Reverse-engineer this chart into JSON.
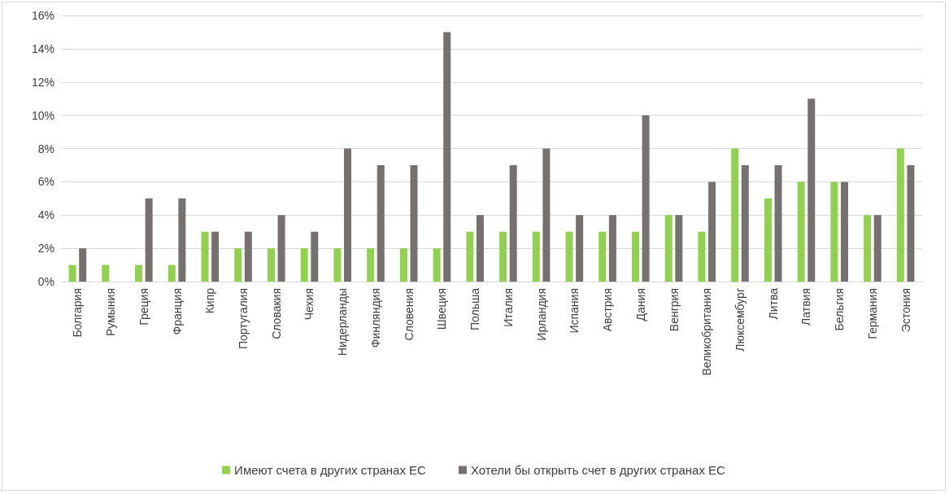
{
  "chart_data": {
    "type": "bar",
    "categories": [
      "Болгария",
      "Румыния",
      "Греция",
      "Франция",
      "Кипр",
      "Португалия",
      "Словакия",
      "Чехия",
      "Нидерланды",
      "Финляндия",
      "Словения",
      "Швеция",
      "Польша",
      "Италия",
      "Ирландия",
      "Испания",
      "Австрия",
      "Дания",
      "Венгрия",
      "Великобритания",
      "Люксембург",
      "Литва",
      "Латвия",
      "Бельгия",
      "Германия",
      "Эстония"
    ],
    "series": [
      {
        "name": "Имеют счета в других странах ЕС",
        "color": "#92d050",
        "values": [
          1,
          1,
          1,
          1,
          3,
          2,
          2,
          2,
          2,
          2,
          2,
          2,
          3,
          3,
          3,
          3,
          3,
          3,
          4,
          3,
          8,
          5,
          6,
          6,
          4,
          8
        ]
      },
      {
        "name": "Хотели бы открыть счет в других странах ЕС",
        "color": "#767171",
        "values": [
          2,
          0,
          5,
          5,
          3,
          3,
          4,
          3,
          8,
          7,
          7,
          15,
          4,
          7,
          8,
          4,
          4,
          10,
          4,
          6,
          7,
          7,
          11,
          6,
          4,
          7
        ]
      }
    ],
    "ylim": [
      0,
      16
    ],
    "yticks": [
      {
        "value": 0,
        "label": "0%"
      },
      {
        "value": 2,
        "label": "2%"
      },
      {
        "value": 4,
        "label": "4%"
      },
      {
        "value": 6,
        "label": "6%"
      },
      {
        "value": 8,
        "label": "8%"
      },
      {
        "value": 10,
        "label": "10%"
      },
      {
        "value": 12,
        "label": "12%"
      },
      {
        "value": 14,
        "label": "14%"
      },
      {
        "value": 16,
        "label": "16%"
      }
    ],
    "grid": "y",
    "legend": "bottom"
  }
}
